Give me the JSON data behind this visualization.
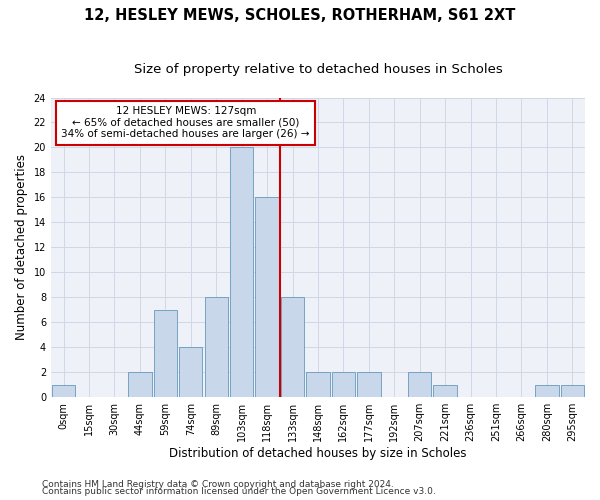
{
  "title1": "12, HESLEY MEWS, SCHOLES, ROTHERHAM, S61 2XT",
  "title2": "Size of property relative to detached houses in Scholes",
  "xlabel": "Distribution of detached houses by size in Scholes",
  "ylabel": "Number of detached properties",
  "footer1": "Contains HM Land Registry data © Crown copyright and database right 2024.",
  "footer2": "Contains public sector information licensed under the Open Government Licence v3.0.",
  "bin_labels": [
    "0sqm",
    "15sqm",
    "30sqm",
    "44sqm",
    "59sqm",
    "74sqm",
    "89sqm",
    "103sqm",
    "118sqm",
    "133sqm",
    "148sqm",
    "162sqm",
    "177sqm",
    "192sqm",
    "207sqm",
    "221sqm",
    "236sqm",
    "251sqm",
    "266sqm",
    "280sqm",
    "295sqm"
  ],
  "bar_values": [
    1,
    0,
    0,
    2,
    7,
    4,
    8,
    20,
    16,
    8,
    2,
    2,
    2,
    0,
    2,
    1,
    0,
    0,
    0,
    1,
    1
  ],
  "bar_color": "#c8d8ea",
  "bar_edge_color": "#6699bb",
  "vline_x": 8.5,
  "vline_color": "#cc0000",
  "annotation_line1": "12 HESLEY MEWS: 127sqm",
  "annotation_line2": "← 65% of detached houses are smaller (50)",
  "annotation_line3": "34% of semi-detached houses are larger (26) →",
  "annotation_box_color": "#cc0000",
  "ylim": [
    0,
    24
  ],
  "yticks": [
    0,
    2,
    4,
    6,
    8,
    10,
    12,
    14,
    16,
    18,
    20,
    22,
    24
  ],
  "grid_color": "#d0d8e8",
  "bg_color": "#eef2f8",
  "title1_fontsize": 10.5,
  "title2_fontsize": 9.5,
  "xlabel_fontsize": 8.5,
  "ylabel_fontsize": 8.5,
  "tick_fontsize": 7,
  "footer_fontsize": 6.5
}
